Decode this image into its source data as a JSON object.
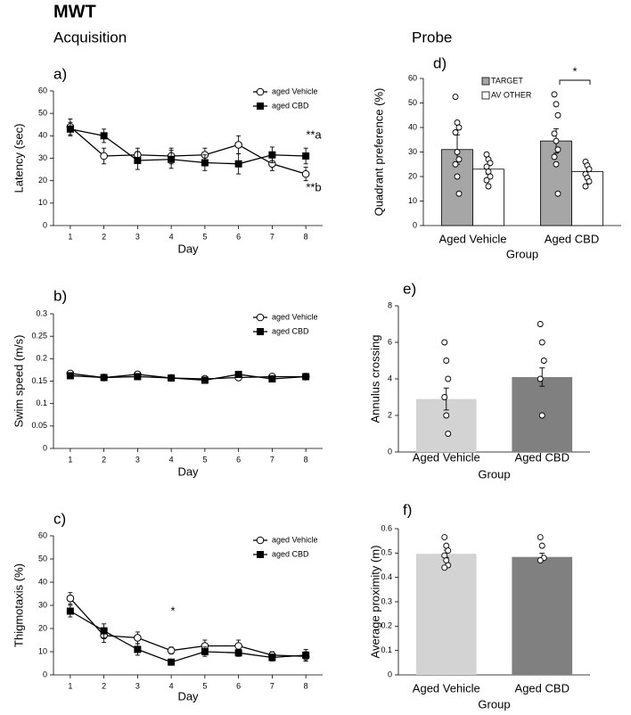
{
  "header": {
    "title": "MWT",
    "left": "Acquisition",
    "right": "Probe"
  },
  "chart_data": [
    {
      "type": "line",
      "label": "a)",
      "xlabel": "Day",
      "ylabel": "Latency (sec)",
      "x": [
        1,
        2,
        3,
        4,
        5,
        6,
        7,
        8
      ],
      "xlim": [
        0.5,
        8.5
      ],
      "xticks": [
        1,
        2,
        3,
        4,
        5,
        6,
        7,
        8
      ],
      "ylim": [
        0,
        60
      ],
      "yticks": [
        0,
        10,
        20,
        30,
        40,
        50,
        60
      ],
      "legend": "upper right",
      "series": [
        {
          "name": "aged Vehicle",
          "color": "#000000",
          "marker": "circle",
          "fill": "#ffffff",
          "values": [
            44,
            31,
            31.5,
            31,
            31.5,
            36,
            27.5,
            23
          ],
          "errors": [
            3.5,
            3.5,
            3,
            3.5,
            3,
            4,
            3,
            3
          ]
        },
        {
          "name": "aged CBD",
          "color": "#000000",
          "marker": "square",
          "fill": "#000000",
          "values": [
            43,
            40,
            29,
            29.5,
            28,
            27.5,
            31.5,
            31
          ],
          "errors": [
            3,
            3,
            4,
            4,
            3.5,
            4.5,
            3.5,
            3.5
          ]
        }
      ],
      "annotations": [
        "**a",
        "**b"
      ]
    },
    {
      "type": "line",
      "label": "b)",
      "xlabel": "Day",
      "ylabel": "Swim speed (m/s)",
      "x": [
        1,
        2,
        3,
        4,
        5,
        6,
        7,
        8
      ],
      "xlim": [
        0.5,
        8.5
      ],
      "xticks": [
        1,
        2,
        3,
        4,
        5,
        6,
        7,
        8
      ],
      "ylim": [
        0,
        0.3
      ],
      "yticks": [
        0,
        0.05,
        0.1,
        0.15,
        0.2,
        0.25,
        0.3
      ],
      "legend": "upper right",
      "series": [
        {
          "name": "aged Vehicle",
          "color": "#000000",
          "marker": "circle",
          "fill": "#ffffff",
          "values": [
            0.167,
            0.158,
            0.165,
            0.157,
            0.155,
            0.158,
            0.16,
            0.16
          ],
          "errors": [
            0.005,
            0.004,
            0.005,
            0.004,
            0.005,
            0.004,
            0.004,
            0.004
          ]
        },
        {
          "name": "aged CBD",
          "color": "#000000",
          "marker": "square",
          "fill": "#000000",
          "values": [
            0.162,
            0.158,
            0.16,
            0.157,
            0.152,
            0.165,
            0.155,
            0.16
          ],
          "errors": [
            0.004,
            0.004,
            0.004,
            0.004,
            0.005,
            0.004,
            0.004,
            0.004
          ]
        }
      ],
      "annotations": []
    },
    {
      "type": "line",
      "label": "c)",
      "xlabel": "Day",
      "ylabel": "Thigmotaxis (%)",
      "x": [
        1,
        2,
        3,
        4,
        5,
        6,
        7,
        8
      ],
      "xlim": [
        0.5,
        8.5
      ],
      "xticks": [
        1,
        2,
        3,
        4,
        5,
        6,
        7,
        8
      ],
      "ylim": [
        0,
        60
      ],
      "yticks": [
        0,
        10,
        20,
        30,
        40,
        50,
        60
      ],
      "legend": "upper right",
      "series": [
        {
          "name": "aged Vehicle",
          "color": "#000000",
          "marker": "circle",
          "fill": "#ffffff",
          "values": [
            33,
            17,
            16,
            10.5,
            12.5,
            12.5,
            8.5,
            8
          ],
          "errors": [
            2.5,
            3,
            2.5,
            1.5,
            2.5,
            2.5,
            1.5,
            2
          ]
        },
        {
          "name": "aged CBD",
          "color": "#000000",
          "marker": "square",
          "fill": "#000000",
          "values": [
            27.5,
            19,
            11,
            5.5,
            10,
            9.5,
            7.5,
            8.5
          ],
          "errors": [
            2.5,
            3,
            2.5,
            1,
            2,
            1.5,
            1.5,
            2.5
          ]
        }
      ],
      "annotations": [
        "*"
      ]
    },
    {
      "type": "bar",
      "label": "d)",
      "xlabel": "Group",
      "ylabel": "Quadrant preference (%)",
      "categories": [
        "Aged Vehicle",
        "Aged CBD"
      ],
      "ylim": [
        0,
        60
      ],
      "yticks": [
        0,
        10,
        20,
        30,
        40,
        50,
        60
      ],
      "legend": "upper left",
      "series": [
        {
          "name": "TARGET",
          "color": "#a6a6a6",
          "values": [
            31,
            34.5
          ],
          "errors": [
            6,
            5
          ],
          "points": [
            [
              52.5,
              42,
              40,
              38,
              30,
              27,
              25,
              20,
              13
            ],
            [
              53.5,
              49.5,
              45,
              37.5,
              34.5,
              31,
              28,
              25,
              13
            ]
          ]
        },
        {
          "name": "AV OTHER",
          "color": "#ffffff",
          "values": [
            23,
            22
          ],
          "errors": [
            2,
            2
          ],
          "points": [
            [
              29,
              27,
              25.5,
              24,
              22,
              20,
              18.5,
              16
            ],
            [
              26,
              24.5,
              23,
              21,
              19.5,
              18,
              16
            ]
          ]
        }
      ],
      "annotations": [
        "*"
      ]
    },
    {
      "type": "bar",
      "label": "e)",
      "xlabel": "Group",
      "ylabel": "Annulus crossing",
      "categories": [
        "Aged Vehicle",
        "Aged CBD"
      ],
      "ylim": [
        0,
        8
      ],
      "yticks": [
        0,
        2,
        4,
        6,
        8
      ],
      "series": [
        {
          "colors": [
            "#d3d3d3",
            "#808080"
          ],
          "values": [
            2.9,
            4.1
          ],
          "errors": [
            0.6,
            0.5
          ],
          "points": [
            [
              6,
              5,
              4,
              3,
              2,
              1
            ],
            [
              7,
              6,
              5,
              4,
              2
            ]
          ]
        }
      ],
      "annotations": []
    },
    {
      "type": "bar",
      "label": "f)",
      "xlabel": "Group",
      "ylabel": "Average proximity (m)",
      "categories": [
        "Aged Vehicle",
        "Aged CBD"
      ],
      "ylim": [
        0,
        0.6
      ],
      "yticks": [
        0,
        0.1,
        0.2,
        0.3,
        0.4,
        0.5,
        0.6
      ],
      "series": [
        {
          "colors": [
            "#d3d3d3",
            "#808080"
          ],
          "values": [
            0.497,
            0.484
          ],
          "errors": [
            0.015,
            0.015
          ],
          "points": [
            [
              0.565,
              0.53,
              0.51,
              0.49,
              0.47,
              0.45,
              0.44
            ],
            [
              0.565,
              0.53,
              0.48,
              0.47
            ]
          ]
        }
      ],
      "annotations": []
    }
  ]
}
